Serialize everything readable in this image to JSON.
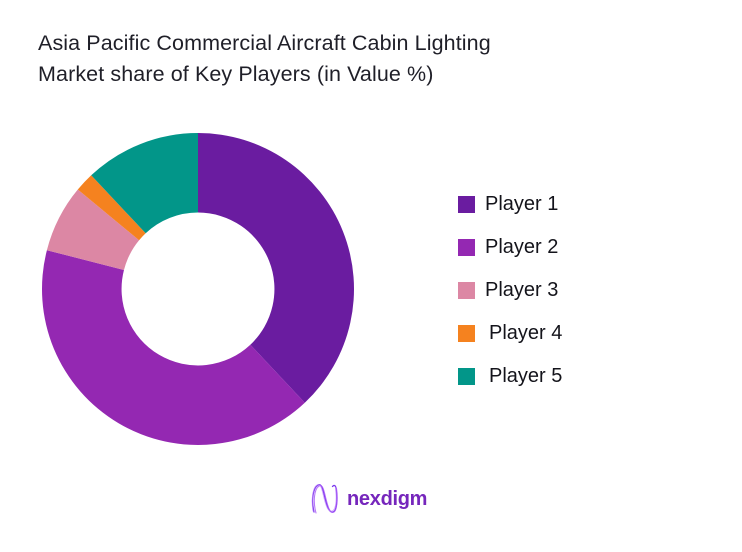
{
  "title": {
    "line1": "Asia Pacific Commercial Aircraft Cabin Lighting",
    "line2": "Market share of Key Players (in Value %)"
  },
  "chart_data": {
    "type": "pie",
    "subtype": "donut",
    "title": "Asia Pacific Commercial Aircraft Cabin Lighting Market share of Key Players (in Value %)",
    "unit": "% of value",
    "start_angle_deg": 0,
    "direction": "clockwise",
    "inner_radius_ratio": 0.49,
    "legend_position": "right",
    "data_labels_shown": false,
    "values_estimated_from_arc_angles": true,
    "segments": [
      {
        "label": "Player 1",
        "value": 38,
        "color": "#6A1CA0"
      },
      {
        "label": "Player 2",
        "value": 41,
        "color": "#9428B2"
      },
      {
        "label": "Player 3",
        "value": 7,
        "color": "#DC87A4"
      },
      {
        "label": "Player 4",
        "value": 2,
        "color": "#F5821F"
      },
      {
        "label": "Player 5",
        "value": 12,
        "color": "#029689"
      }
    ]
  },
  "logo": {
    "brand": "nexdigm",
    "color": "#7626BC"
  }
}
